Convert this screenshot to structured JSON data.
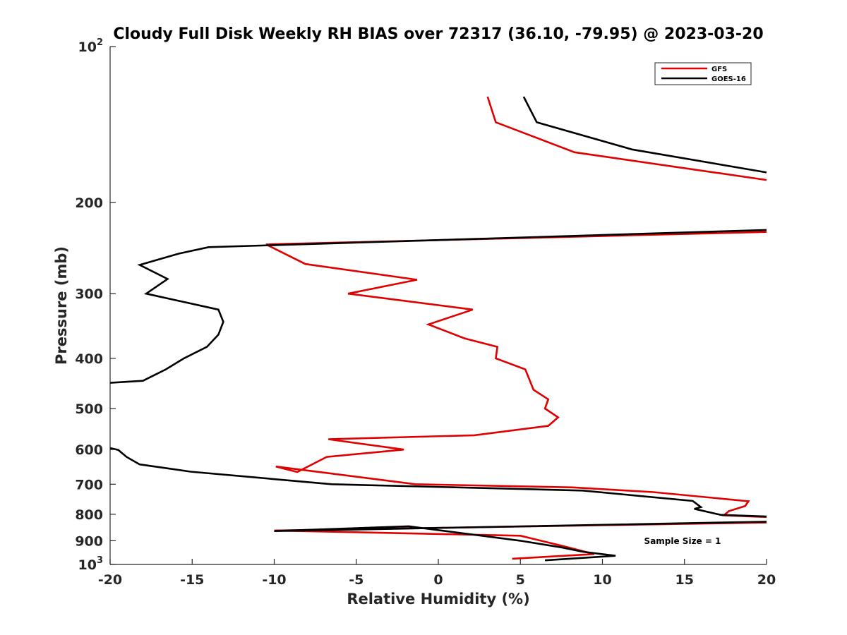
{
  "chart_data": {
    "type": "line",
    "title": "Cloudy Full Disk Weekly RH BIAS over 72317 (36.10, -79.95) @ 2023-03-20",
    "xlabel": "Relative Humidity (%)",
    "ylabel": "Pressure (mb)",
    "xlim": [
      -20,
      20
    ],
    "ylim": [
      100,
      1000
    ],
    "yscale": "log",
    "y_reversed": true,
    "grid": false,
    "legend_placement": "top-right",
    "x_ticks": [
      "-20",
      "-15",
      "-10",
      "-5",
      "0",
      "5",
      "10",
      "15",
      "20"
    ],
    "y_ticks": [
      {
        "value": 100,
        "base": "10",
        "exp": "2"
      },
      {
        "value": 200,
        "label": "200"
      },
      {
        "value": 300,
        "label": "300"
      },
      {
        "value": 400,
        "label": "400"
      },
      {
        "value": 500,
        "label": "500"
      },
      {
        "value": 600,
        "label": "600"
      },
      {
        "value": 700,
        "label": "700"
      },
      {
        "value": 800,
        "label": "800"
      },
      {
        "value": 900,
        "label": "900"
      },
      {
        "value": 1000,
        "base": "10",
        "exp": "3"
      }
    ],
    "annotation": "Sample Size = 1",
    "series": [
      {
        "name": "GFS",
        "color": "#e00000",
        "segments": [
          [
            [
              3.0,
              125
            ],
            [
              3.5,
              140
            ],
            [
              8.3,
              160
            ],
            [
              20,
              181
            ]
          ],
          [
            [
              20,
              228
            ],
            [
              -10.5,
              241
            ],
            [
              -8.1,
              263
            ],
            [
              -1.3,
              282
            ],
            [
              -5.5,
              300
            ],
            [
              2.1,
              322
            ],
            [
              -0.6,
              344
            ],
            [
              1.6,
              366
            ],
            [
              3.6,
              380
            ],
            [
              3.5,
              400
            ],
            [
              5.3,
              420
            ],
            [
              5.8,
              460
            ],
            [
              6.7,
              480
            ],
            [
              6.5,
              500
            ],
            [
              7.3,
              520
            ],
            [
              6.7,
              540
            ],
            [
              2.2,
              563
            ],
            [
              -6.7,
              573
            ],
            [
              -2.1,
              600
            ],
            [
              -6.8,
              620
            ],
            [
              -8.6,
              663
            ],
            [
              -9.9,
              647
            ],
            [
              -1.4,
              700
            ],
            [
              8.2,
              710
            ],
            [
              13.1,
              725
            ],
            [
              18.9,
              755
            ],
            [
              18.7,
              771
            ],
            [
              17.7,
              789
            ],
            [
              17.4,
              804
            ],
            [
              20,
              810
            ]
          ],
          [
            [
              20,
              830
            ],
            [
              -10.0,
              860
            ],
            [
              5.0,
              880
            ],
            [
              7.5,
              920
            ],
            [
              9.5,
              955
            ],
            [
              4.5,
              975
            ]
          ]
        ]
      },
      {
        "name": "GOES-16",
        "color": "#000000",
        "segments": [
          [
            [
              5.2,
              125
            ],
            [
              6.0,
              140
            ],
            [
              11.8,
              158
            ],
            [
              20,
              175
            ]
          ],
          [
            [
              20,
              226
            ],
            [
              -14.0,
              244
            ],
            [
              -15.8,
              251
            ],
            [
              -18.2,
              264
            ],
            [
              -16.5,
              281
            ],
            [
              -17.8,
              300
            ],
            [
              -13.4,
              322
            ],
            [
              -13.1,
              340
            ],
            [
              -13.4,
              360
            ],
            [
              -14.1,
              380
            ],
            [
              -15.5,
              400
            ],
            [
              -16.6,
              420
            ],
            [
              -18.0,
              442
            ],
            [
              -20,
              446
            ]
          ],
          [
            [
              -20,
              596
            ],
            [
              -19.5,
              601
            ],
            [
              -19.0,
              620
            ],
            [
              -18.2,
              641
            ],
            [
              -15.1,
              662
            ],
            [
              -6.5,
              700
            ],
            [
              8.8,
              720
            ],
            [
              15.5,
              754
            ],
            [
              16.0,
              775
            ],
            [
              15.6,
              781
            ],
            [
              17.2,
              802
            ],
            [
              20,
              808
            ]
          ],
          [
            [
              20,
              827
            ],
            [
              -10.0,
              862
            ],
            [
              -1.8,
              844
            ],
            [
              5.0,
              900
            ],
            [
              7.5,
              927
            ],
            [
              8.8,
              945
            ],
            [
              10.8,
              962
            ],
            [
              6.5,
              982
            ]
          ]
        ]
      }
    ]
  }
}
